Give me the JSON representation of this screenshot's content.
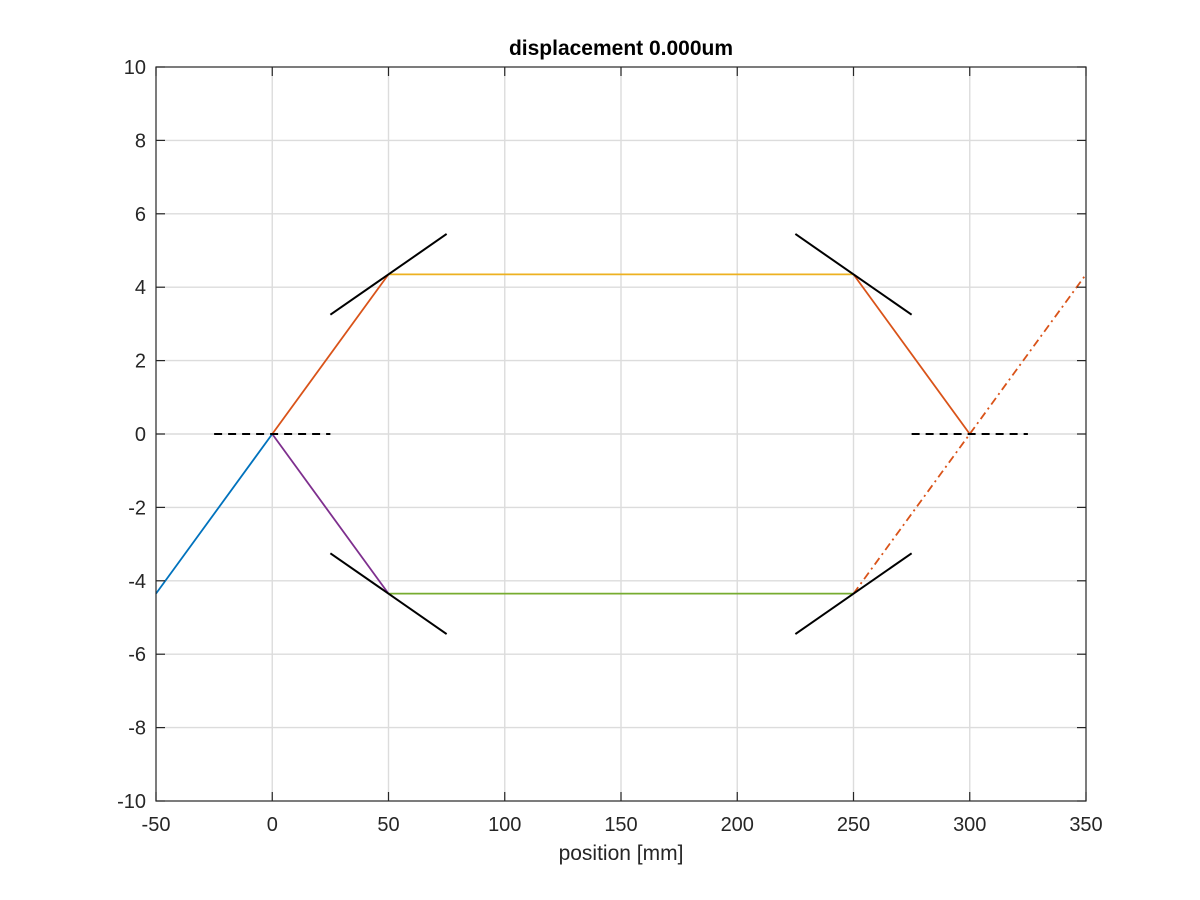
{
  "chart_data": {
    "type": "line",
    "title": "displacement 0.000um",
    "xlabel": "position [mm]",
    "ylabel": "",
    "xlim": [
      -50,
      350
    ],
    "ylim": [
      -10,
      10
    ],
    "xticks": [
      -50,
      0,
      50,
      100,
      150,
      200,
      250,
      300,
      350
    ],
    "yticks": [
      -10,
      -8,
      -6,
      -4,
      -2,
      0,
      2,
      4,
      6,
      8,
      10
    ],
    "xtick_labels": [
      "-50",
      "0",
      "50",
      "100",
      "150",
      "200",
      "250",
      "300",
      "350"
    ],
    "ytick_labels": [
      "-10",
      "-8",
      "-6",
      "-4",
      "-2",
      "0",
      "2",
      "4",
      "6",
      "8",
      "10"
    ],
    "grid": true,
    "legend": "none",
    "series": [
      {
        "color": "#0072BD",
        "style": "solid",
        "x": [
          -50,
          0
        ],
        "y": [
          -4.35,
          0
        ]
      },
      {
        "color": "#D95319",
        "style": "solid",
        "x": [
          0,
          50
        ],
        "y": [
          0,
          4.35
        ]
      },
      {
        "color": "#EDB120",
        "style": "solid",
        "x": [
          50,
          250
        ],
        "y": [
          4.35,
          4.35
        ]
      },
      {
        "color": "#D95319",
        "style": "solid",
        "x": [
          250,
          300
        ],
        "y": [
          4.35,
          0
        ]
      },
      {
        "color": "#7E2F8E",
        "style": "solid",
        "x": [
          0,
          50
        ],
        "y": [
          0,
          -4.35
        ]
      },
      {
        "color": "#77AC30",
        "style": "solid",
        "x": [
          50,
          250
        ],
        "y": [
          -4.35,
          -4.35
        ]
      },
      {
        "color": "#D95319",
        "style": "dashdot",
        "x": [
          250,
          350
        ],
        "y": [
          -4.35,
          4.35
        ]
      },
      {
        "color": "#000000",
        "style": "solid",
        "x": [
          25,
          75
        ],
        "y": [
          3.25,
          5.45
        ]
      },
      {
        "color": "#000000",
        "style": "solid",
        "x": [
          25,
          75
        ],
        "y": [
          -3.25,
          -5.45
        ]
      },
      {
        "color": "#000000",
        "style": "solid",
        "x": [
          225,
          275
        ],
        "y": [
          5.45,
          3.25
        ]
      },
      {
        "color": "#000000",
        "style": "solid",
        "x": [
          225,
          275
        ],
        "y": [
          -5.45,
          -3.25
        ]
      },
      {
        "color": "#000000",
        "style": "dashed",
        "x": [
          -25,
          25
        ],
        "y": [
          0,
          0
        ]
      },
      {
        "color": "#000000",
        "style": "dashed",
        "x": [
          275,
          325
        ],
        "y": [
          0,
          0
        ]
      }
    ]
  }
}
